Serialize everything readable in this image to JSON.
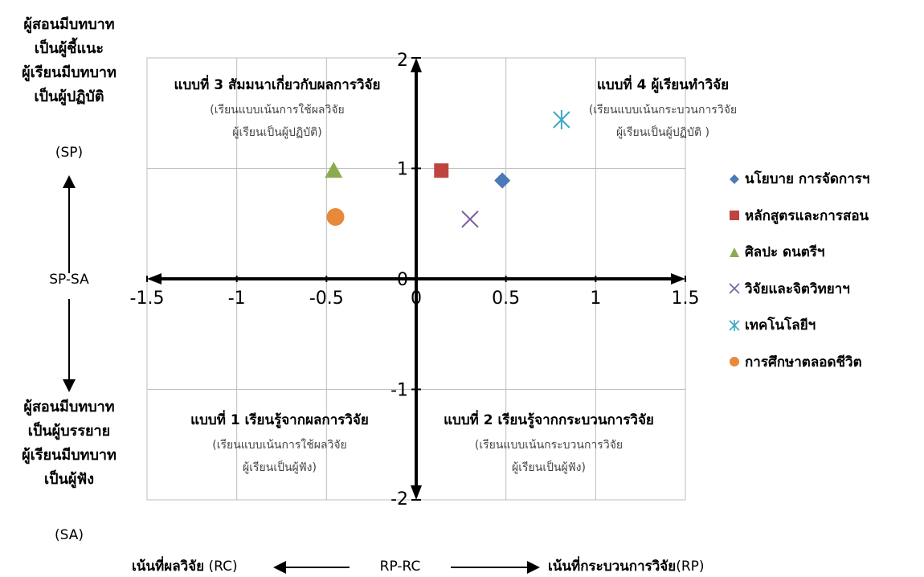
{
  "left_labels": {
    "top_role_lines": [
      "ผู้สอนมีบทบาท",
      "เป็นผู้ชี้แนะ",
      "ผู้เรียนมีบทบาท",
      "เป็นผู้ปฏิบัติ"
    ],
    "top_code": "(SP)",
    "middle": "SP-SA",
    "bottom_role_lines": [
      "ผู้สอนมีบทบาท",
      "เป็นผู้บรรยาย",
      "ผู้เรียนมีบทบาท",
      "เป็นผู้ฟัง"
    ],
    "bottom_code": "(SA)"
  },
  "bottom_labels": {
    "left": "เน้นที่ผลวิจัย",
    "left_code": "(RC)",
    "middle": "RP-RC",
    "right": "เน้นที่กระบวนการวิจัย",
    "right_code": "(RP)"
  },
  "chart_data": {
    "type": "scatter",
    "xlim": [
      -1.5,
      1.5
    ],
    "ylim": [
      -2,
      2
    ],
    "x_ticks": [
      -1.5,
      -1,
      -0.5,
      0,
      0.5,
      1,
      1.5
    ],
    "x_tick_labels": [
      "-1.5",
      "-1",
      "-0.5",
      "0",
      "0.5",
      "1",
      "1.5"
    ],
    "y_ticks": [
      -2,
      -1,
      0,
      1,
      2
    ],
    "y_tick_labels": [
      "-2",
      "-1",
      "0",
      "1",
      "2"
    ],
    "grid": true,
    "legend_position": "right",
    "series": [
      {
        "name": "นโยบาย การจัดการฯ",
        "marker": "diamond",
        "color": "#4a7ab8",
        "x": 0.48,
        "y": 0.89
      },
      {
        "name": "หลักสูตรและการสอน",
        "marker": "square",
        "color": "#bf4440",
        "x": 0.14,
        "y": 0.98
      },
      {
        "name": "ศิลปะ ดนตรีฯ",
        "marker": "triangle",
        "color": "#8bac4e",
        "x": -0.46,
        "y": 0.98
      },
      {
        "name": "วิจัยและจิตวิทยาฯ",
        "marker": "x",
        "color": "#7d5fa3",
        "x": 0.3,
        "y": 0.54
      },
      {
        "name": "เทคโนโลยีฯ",
        "marker": "asterisk",
        "color": "#3fa8c4",
        "x": 0.81,
        "y": 1.44
      },
      {
        "name": "การศึกษาตลอดชีวิต",
        "marker": "circle",
        "color": "#e8883a",
        "x": -0.45,
        "y": 0.56
      }
    ],
    "quadrant_labels": [
      {
        "title": "แบบที่ 3 สัมมนาเกี่ยวกับผลการวิจัย",
        "sub1": "(เรียนแบบเน้นการใช้ผลวิจัย",
        "sub2": "ผู้เรียนเป็นผู้ปฏิบัติ)"
      },
      {
        "title": "แบบที่ 4 ผู้เรียนทำวิจัย",
        "sub1": "(เรียนแบบเน้นกระบวนการวิจัย",
        "sub2": "ผู้เรียนเป็นผู้ปฏิบัติ )"
      },
      {
        "title": "แบบที่ 1 เรียนรู้จากผลการวิจัย",
        "sub1": "(เรียนแบบเน้นการใช้ผลวิจัย",
        "sub2": "ผู้เรียนเป็นผู้ฟัง)"
      },
      {
        "title": "แบบที่ 2 เรียนรู้จากกระบวนการวิจัย",
        "sub1": "(เรียนแบบเน้นกระบวนการวิจัย",
        "sub2": "ผู้เรียนเป็นผู้ฟัง)"
      }
    ]
  }
}
